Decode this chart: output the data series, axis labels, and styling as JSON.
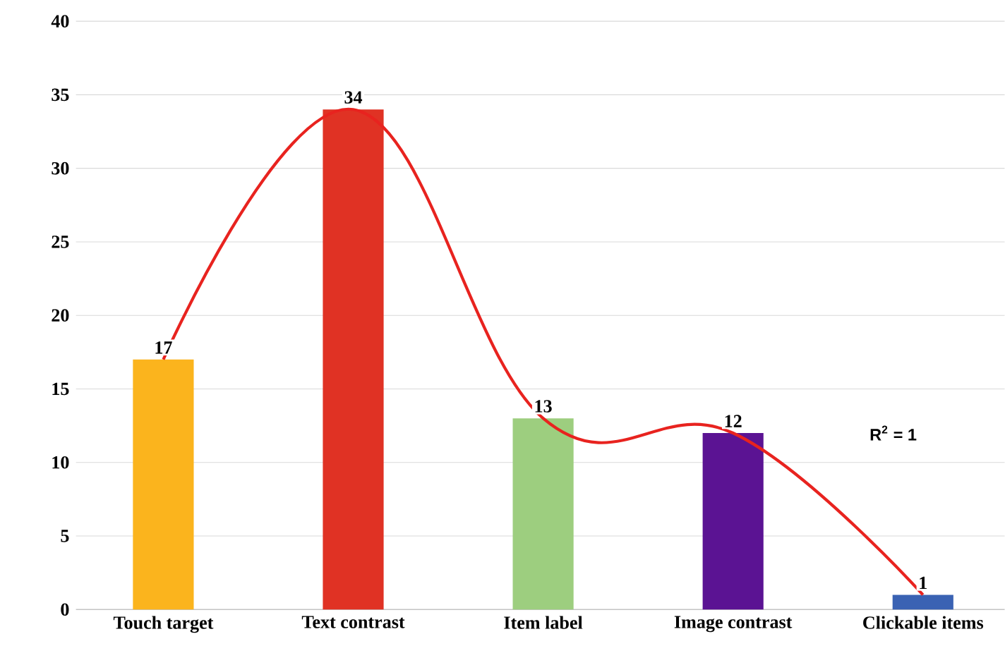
{
  "chart_data": {
    "type": "bar",
    "categories": [
      "Touch target",
      "Text contrast",
      "Item label",
      "Image contrast",
      "Clickable items"
    ],
    "series": [
      {
        "values": [
          17,
          34,
          13,
          12,
          1
        ],
        "colors": [
          "#fbb41d",
          "#e03224",
          "#9dce7f",
          "#5b1393",
          "#3a62b3"
        ],
        "value_labels": [
          "17",
          "34",
          "13",
          "12",
          "1"
        ]
      },
      {
        "type": "line",
        "color": "#e8231f",
        "values": [
          17,
          34,
          13,
          12,
          1
        ]
      }
    ],
    "ylim": [
      0,
      40
    ],
    "yticks": [
      0,
      5,
      10,
      15,
      20,
      25,
      30,
      35,
      40
    ],
    "grid": "y",
    "annotations": [
      "R$^{2}$ = 1"
    ]
  }
}
